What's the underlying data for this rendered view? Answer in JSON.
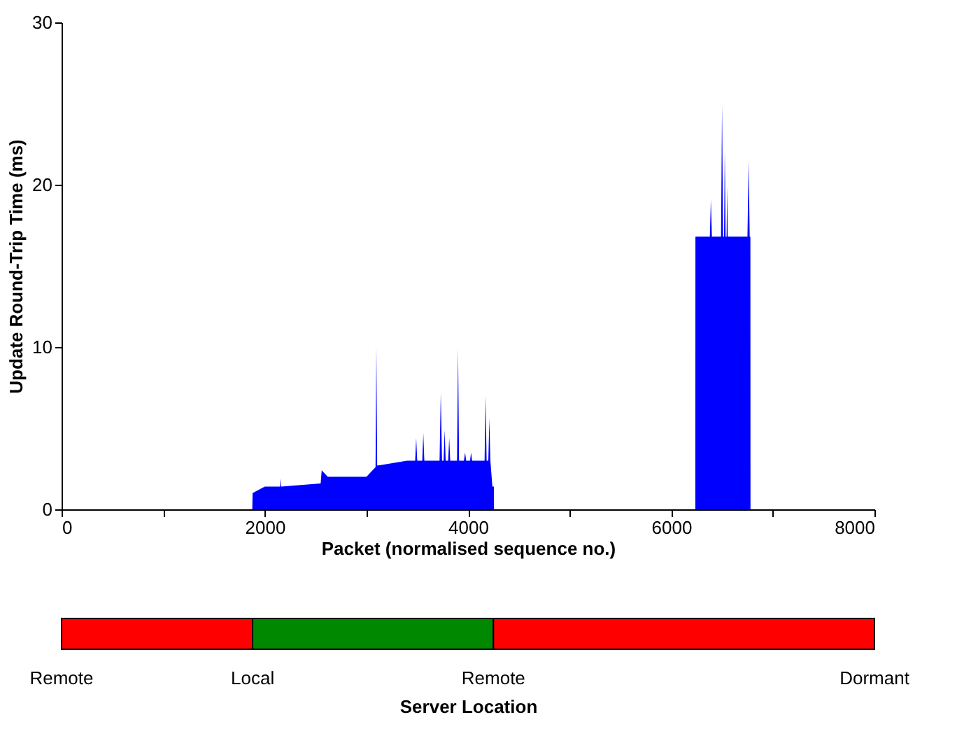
{
  "chart_data": [
    {
      "type": "area",
      "xlabel": "Packet (normalised sequence no.)",
      "ylabel": "Update Round-Trip Time (ms)",
      "x": [
        1877,
        1880,
        2000,
        2010,
        2150,
        2155,
        2160,
        2550,
        2560,
        2620,
        3000,
        3090,
        3098,
        3106,
        3120,
        3400,
        3480,
        3490,
        3500,
        3550,
        3560,
        3570,
        3720,
        3732,
        3744,
        3760,
        3770,
        3780,
        3805,
        3815,
        3825,
        3892,
        3902,
        3912,
        3960,
        3971,
        3982,
        4020,
        4030,
        4040,
        4163,
        4173,
        4183,
        4200,
        4210,
        4220,
        4240,
        4255,
        4256,
        6237,
        6238,
        6380,
        6390,
        6400,
        6490,
        6500,
        6510,
        6520,
        6527,
        6535,
        6545,
        6550,
        6556,
        6750,
        6762,
        6772,
        6779,
        6780
      ],
      "series": [
        {
          "color": "#0000ff",
          "values": [
            0,
            1.0,
            1.4,
            1.4,
            1.4,
            1.9,
            1.4,
            1.6,
            2.4,
            2.0,
            2.0,
            2.6,
            10.0,
            2.7,
            2.7,
            3.0,
            3.0,
            4.4,
            3.0,
            3.0,
            4.7,
            3.0,
            3.0,
            7.2,
            3.0,
            3.0,
            4.9,
            3.0,
            3.0,
            4.4,
            3.0,
            3.0,
            9.9,
            3.0,
            3.0,
            3.5,
            3.0,
            3.0,
            3.5,
            3.0,
            3.0,
            7.0,
            3.0,
            3.0,
            5.6,
            3.0,
            1.4,
            1.4,
            0,
            0,
            16.8,
            16.8,
            19.1,
            16.8,
            16.8,
            24.9,
            16.8,
            16.8,
            22.1,
            16.8,
            16.8,
            19.9,
            16.8,
            16.8,
            21.5,
            16.8,
            16.8,
            0
          ]
        }
      ],
      "xlim": [
        0,
        8000
      ],
      "ylim": [
        0,
        30
      ],
      "xticks": [
        0,
        {
          "value": 1000,
          "label": null
        },
        2000,
        {
          "value": 3000,
          "label": null
        },
        4000,
        {
          "value": 5000,
          "label": null
        },
        6000,
        {
          "value": 7000,
          "label": null
        },
        8000
      ],
      "yticks": [
        0,
        10,
        20,
        30
      ],
      "grid": false
    },
    {
      "type": "bar",
      "orientation": "horizontal",
      "stacked": true,
      "categories": [
        null
      ],
      "xlabel": "Server Location",
      "series": [
        {
          "color": "#ff0000",
          "values": [
            1880
          ]
        },
        {
          "color": "#008800",
          "values": [
            2370
          ]
        },
        {
          "color": "#ff0000",
          "values": [
            3750
          ]
        }
      ],
      "xlim": [
        0,
        8000
      ],
      "annotations": [
        "Remote",
        "Local",
        "Remote",
        "Dormant"
      ]
    }
  ]
}
